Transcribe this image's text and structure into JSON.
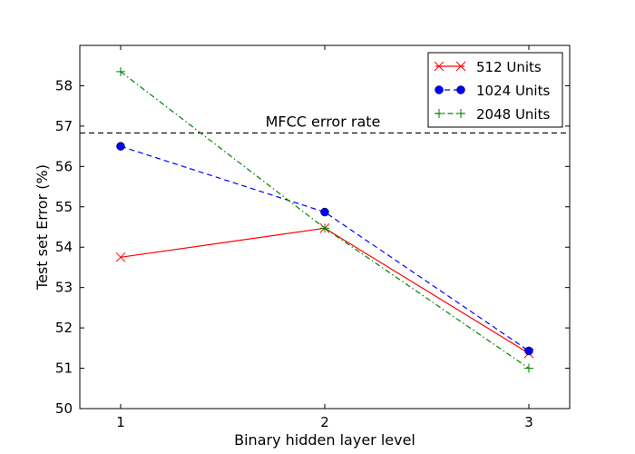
{
  "chart_data": {
    "type": "line",
    "xlabel": "Binary hidden layer level",
    "ylabel": "Test set Error (%)",
    "x": [
      1,
      2,
      3
    ],
    "xlim": [
      0.8,
      3.2
    ],
    "ylim": [
      50,
      59
    ],
    "xticks": [
      1,
      2,
      3
    ],
    "yticks": [
      50,
      51,
      52,
      53,
      54,
      55,
      56,
      57,
      58
    ],
    "grid": false,
    "legend_position": "top-right",
    "series": [
      {
        "name": "512 Units",
        "values": [
          53.75,
          54.47,
          51.37
        ],
        "color": "#ff0000",
        "linestyle": "solid",
        "marker": "x"
      },
      {
        "name": "1024 Units",
        "values": [
          56.5,
          54.87,
          51.43
        ],
        "color": "#0000ff",
        "linestyle": "dashed",
        "marker": "circle"
      },
      {
        "name": "2048 Units",
        "values": [
          58.35,
          54.47,
          51.0
        ],
        "color": "#008000",
        "linestyle": "dashdot",
        "marker": "plus"
      }
    ],
    "reference_lines": [
      {
        "label": "MFCC error rate",
        "y": 56.83,
        "color": "#000000",
        "linestyle": "dashed"
      }
    ]
  }
}
